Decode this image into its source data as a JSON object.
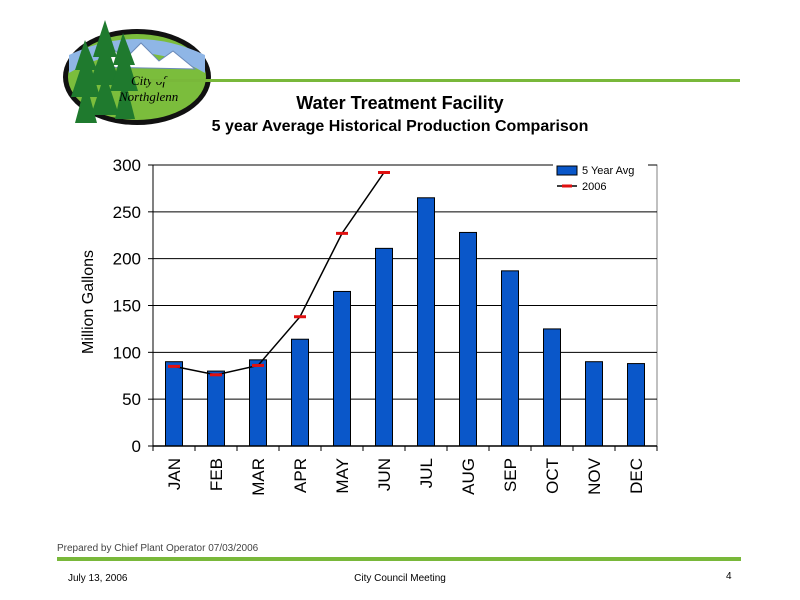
{
  "logo": {
    "text_line1": "City of",
    "text_line2": "Northglenn"
  },
  "slide": {
    "title": "Water Treatment Facility",
    "subtitle": "5 year Average Historical Production Comparison",
    "prepared_by": "Prepared by Chief Plant Operator 07/03/2006"
  },
  "footer": {
    "date": "July 13, 2006",
    "meeting": "City Council Meeting",
    "page_number": "4"
  },
  "colors": {
    "accent_green": "#79b83a",
    "bar_fill": "#0a57c9",
    "line_marker": "#e01010"
  },
  "chart_data": {
    "type": "bar",
    "ylabel": "Million Gallons",
    "xlabel": "",
    "ylim": [
      0,
      300
    ],
    "yticks": [
      0,
      50,
      100,
      150,
      200,
      250,
      300
    ],
    "grid": true,
    "legend_position": "top-right",
    "categories": [
      "JAN",
      "FEB",
      "MAR",
      "APR",
      "MAY",
      "JUN",
      "JUL",
      "AUG",
      "SEP",
      "OCT",
      "NOV",
      "DEC"
    ],
    "series": [
      {
        "name": "5 Year Avg",
        "type": "bar",
        "values": [
          90,
          80,
          92,
          114,
          165,
          211,
          265,
          228,
          187,
          125,
          90,
          88
        ]
      },
      {
        "name": "2006",
        "type": "line",
        "values": [
          85,
          76,
          86,
          138,
          227,
          292,
          null,
          null,
          null,
          null,
          null,
          null
        ]
      }
    ]
  }
}
